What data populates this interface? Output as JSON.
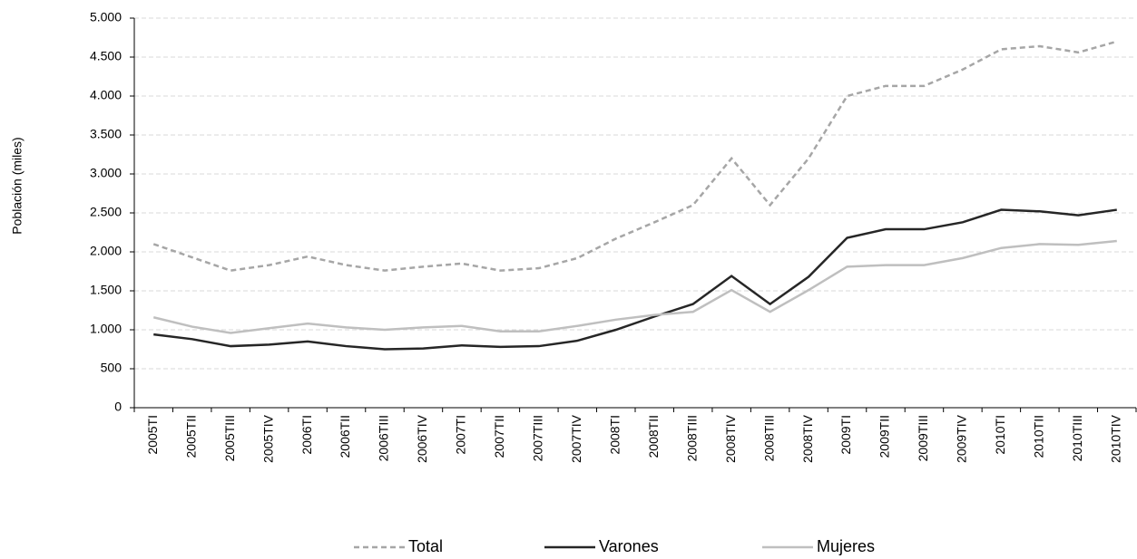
{
  "chart_data": {
    "type": "line",
    "y_label": "Población (miles)",
    "categories": [
      "2005TI",
      "2005TII",
      "2005TIII",
      "2005TIV",
      "2006TI",
      "2006TII",
      "2006TIII",
      "2006TIV",
      "2007TI",
      "2007TII",
      "2007TIII",
      "2007TIV",
      "2008TI",
      "2008TII",
      "2008TIII",
      "2008TIV",
      "2008TIII",
      "2008TIV",
      "2009TI",
      "2009TII",
      "2009TIII",
      "2009TIV",
      "2010TI",
      "2010TII",
      "2010TIII",
      "2010TIV"
    ],
    "series": [
      {
        "name": "Total",
        "color": "#a6a6a6",
        "dashed": true,
        "values": [
          2100,
          1930,
          1760,
          1830,
          1940,
          1830,
          1760,
          1810,
          1850,
          1760,
          1790,
          1920,
          2170,
          2380,
          2600,
          3200,
          2600,
          3200,
          4000,
          4130,
          4130,
          4340,
          4600,
          4640,
          4560,
          4700
        ]
      },
      {
        "name": "Varones",
        "color": "#262626",
        "dashed": false,
        "values": [
          940,
          880,
          790,
          810,
          850,
          790,
          750,
          760,
          800,
          780,
          790,
          860,
          1000,
          1170,
          1330,
          1690,
          1330,
          1680,
          2180,
          2290,
          2290,
          2380,
          2540,
          2520,
          2470,
          2540
        ]
      },
      {
        "name": "Mujeres",
        "color": "#bfbfbf",
        "dashed": false,
        "values": [
          1160,
          1040,
          960,
          1020,
          1080,
          1030,
          1000,
          1030,
          1050,
          980,
          980,
          1050,
          1130,
          1190,
          1230,
          1510,
          1230,
          1510,
          1810,
          1830,
          1830,
          1920,
          2050,
          2100,
          2090,
          2140
        ]
      }
    ],
    "ylim": [
      0,
      5000
    ],
    "yticks": [
      0,
      500,
      {
        "value": 1000,
        "label": "1.000"
      },
      {
        "value": 1500,
        "label": "1.500"
      },
      {
        "value": 2000,
        "label": "2.000"
      },
      {
        "value": 2500,
        "label": "2.500"
      },
      {
        "value": 3000,
        "label": "3.000"
      },
      {
        "value": 3500,
        "label": "3.500"
      },
      {
        "value": 4000,
        "label": "4.000"
      },
      {
        "value": 4500,
        "label": "4.500"
      },
      {
        "value": 5000,
        "label": "5.000"
      }
    ],
    "grid": true,
    "legend": "bottom"
  }
}
